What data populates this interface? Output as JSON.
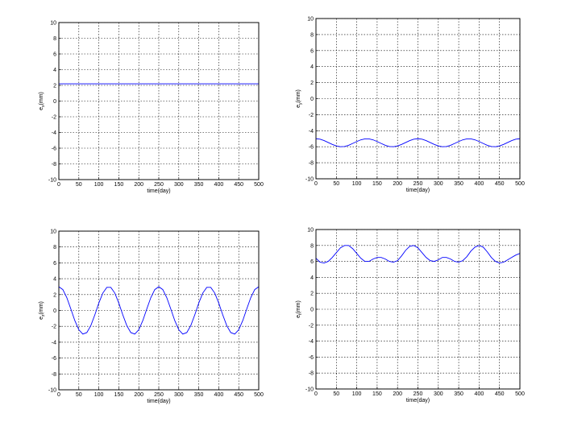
{
  "chart_data": [
    {
      "type": "line",
      "xlabel": "time(day)",
      "ylabel_main": "e",
      "ylabel_sub": "x",
      "ylabel_unit": "(mm)",
      "x": [
        0,
        500
      ],
      "series": [
        {
          "color": "#0000ff",
          "values": [
            2.2,
            2.2
          ]
        }
      ],
      "xlim": [
        0,
        500
      ],
      "ylim": [
        -10,
        10
      ],
      "xticks": [
        0,
        50,
        100,
        150,
        200,
        250,
        300,
        350,
        400,
        450,
        500
      ],
      "yticks": [
        -10,
        -8,
        -6,
        -4,
        -2,
        0,
        2,
        4,
        6,
        8,
        10
      ],
      "grid": true
    },
    {
      "type": "line",
      "xlabel": "time(day)",
      "ylabel_main": "e",
      "ylabel_sub": "y",
      "ylabel_unit": "(mm)",
      "x": [
        0,
        10,
        20,
        30,
        40,
        50,
        60,
        70,
        80,
        90,
        100,
        110,
        120,
        130,
        140,
        150,
        160,
        170,
        180,
        190,
        200,
        210,
        220,
        230,
        240,
        250,
        260,
        270,
        280,
        290,
        300,
        310,
        320,
        330,
        340,
        350,
        360,
        370,
        380,
        390,
        400,
        410,
        420,
        430,
        440,
        450,
        460,
        470,
        480,
        490,
        500
      ],
      "series": [
        {
          "color": "#0000ff",
          "values": [
            -5,
            -5.06,
            -5.23,
            -5.47,
            -5.71,
            -5.9,
            -6,
            -5.97,
            -5.82,
            -5.59,
            -5.35,
            -5.14,
            -5.02,
            -5.02,
            -5.14,
            -5.35,
            -5.59,
            -5.82,
            -5.97,
            -6,
            -5.9,
            -5.71,
            -5.47,
            -5.23,
            -5.06,
            -5,
            -5.06,
            -5.23,
            -5.47,
            -5.71,
            -5.9,
            -6,
            -5.97,
            -5.82,
            -5.59,
            -5.35,
            -5.14,
            -5.02,
            -5.02,
            -5.14,
            -5.35,
            -5.59,
            -5.82,
            -5.97,
            -6,
            -5.9,
            -5.71,
            -5.47,
            -5.23,
            -5.06,
            -5
          ]
        }
      ],
      "xlim": [
        0,
        500
      ],
      "ylim": [
        -10,
        10
      ],
      "xticks": [
        0,
        50,
        100,
        150,
        200,
        250,
        300,
        350,
        400,
        450,
        500
      ],
      "yticks": [
        -10,
        -8,
        -6,
        -4,
        -2,
        0,
        2,
        4,
        6,
        8,
        10
      ],
      "grid": true
    },
    {
      "type": "line",
      "xlabel": "time(day)",
      "ylabel_main": "e",
      "ylabel_sub": "z",
      "ylabel_unit": "(mm)",
      "x": [
        0,
        10,
        20,
        30,
        40,
        50,
        60,
        70,
        80,
        90,
        100,
        110,
        120,
        130,
        140,
        150,
        160,
        170,
        180,
        190,
        200,
        210,
        220,
        230,
        240,
        250,
        260,
        270,
        280,
        290,
        300,
        310,
        320,
        330,
        340,
        350,
        360,
        370,
        380,
        390,
        400,
        410,
        420,
        430,
        440,
        450,
        460,
        470,
        480,
        490,
        500
      ],
      "series": [
        {
          "color": "#0000ff",
          "values": [
            3,
            2.63,
            1.61,
            0.19,
            -1.28,
            -2.43,
            -2.98,
            -2.79,
            -1.91,
            -0.56,
            0.93,
            2.19,
            2.91,
            2.91,
            2.19,
            0.93,
            -0.56,
            -1.91,
            -2.79,
            -2.98,
            -2.43,
            -1.28,
            0.19,
            1.61,
            2.63,
            3,
            2.63,
            1.61,
            0.19,
            -1.28,
            -2.43,
            -2.98,
            -2.79,
            -1.91,
            -0.56,
            0.93,
            2.19,
            2.91,
            2.91,
            2.19,
            0.93,
            -0.56,
            -1.91,
            -2.79,
            -2.98,
            -2.43,
            -1.28,
            0.19,
            1.61,
            2.63,
            3
          ]
        }
      ],
      "xlim": [
        0,
        500
      ],
      "ylim": [
        -10,
        10
      ],
      "xticks": [
        0,
        50,
        100,
        150,
        200,
        250,
        300,
        350,
        400,
        450,
        500
      ],
      "yticks": [
        -10,
        -8,
        -6,
        -4,
        -2,
        0,
        2,
        4,
        6,
        8,
        10
      ],
      "grid": true
    },
    {
      "type": "line",
      "xlabel": "time(day)",
      "ylabel_main": "e",
      "ylabel_sub": "t",
      "ylabel_unit": "(mm)",
      "x": [
        0,
        10,
        20,
        30,
        40,
        50,
        60,
        70,
        80,
        90,
        100,
        110,
        120,
        130,
        140,
        150,
        160,
        170,
        180,
        190,
        200,
        210,
        220,
        230,
        240,
        250,
        260,
        270,
        280,
        290,
        300,
        310,
        320,
        330,
        340,
        350,
        360,
        370,
        380,
        390,
        400,
        410,
        420,
        430,
        440,
        450,
        460,
        470,
        480,
        490,
        500
      ],
      "series": [
        {
          "color": "#0000ff",
          "values": [
            6.4,
            5.9,
            5.8,
            6.0,
            6.5,
            7.1,
            7.7,
            8.0,
            8.0,
            7.6,
            7.0,
            6.4,
            6.0,
            6.0,
            6.3,
            6.5,
            6.5,
            6.3,
            6.0,
            5.9,
            6.1,
            6.7,
            7.4,
            7.9,
            8.0,
            7.7,
            7.1,
            6.5,
            6.1,
            6.0,
            6.2,
            6.5,
            6.5,
            6.3,
            6.0,
            5.9,
            6.1,
            6.6,
            7.3,
            7.8,
            8.0,
            7.8,
            7.2,
            6.5,
            6.0,
            5.8,
            5.9,
            6.2,
            6.5,
            6.8,
            7.0
          ]
        }
      ],
      "xlim": [
        0,
        500
      ],
      "ylim": [
        -10,
        10
      ],
      "xticks": [
        0,
        50,
        100,
        150,
        200,
        250,
        300,
        350,
        400,
        450,
        500
      ],
      "yticks": [
        -10,
        -8,
        -6,
        -4,
        -2,
        0,
        2,
        4,
        6,
        8,
        10
      ],
      "grid": true
    }
  ]
}
